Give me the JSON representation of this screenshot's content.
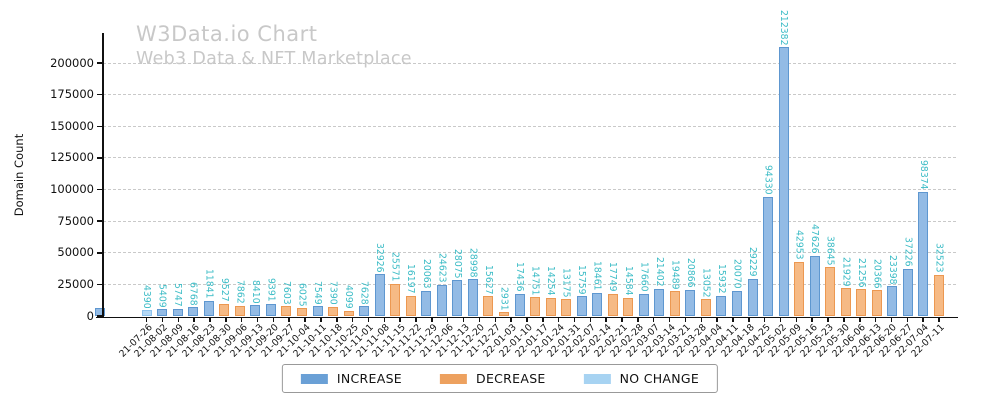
{
  "header": {
    "title": "W3Data.io Chart",
    "subtitle": "Web3 Data & NFT Marketplace"
  },
  "chart_data": {
    "type": "bar",
    "title": "W3Data.io Chart",
    "subtitle": "Web3 Data & NFT Marketplace",
    "xlabel": "",
    "ylabel": "Domain Count",
    "ylim": [
      0,
      223700
    ],
    "yticks": [
      0,
      25000,
      50000,
      75000,
      100000,
      125000,
      150000,
      175000,
      200000
    ],
    "grid": {
      "horizontal": true,
      "style": "dashed",
      "color": "#c9c9c9"
    },
    "legend": {
      "position": "bottom-center",
      "items": [
        {
          "key": "increase",
          "label": "INCREASE",
          "swatch": "#6aa0d6"
        },
        {
          "key": "decrease",
          "label": "DECREASE",
          "swatch": "#eda15f"
        },
        {
          "key": "nochange",
          "label": "NO CHANGE",
          "swatch": "#a7d3f2"
        }
      ]
    },
    "colors": {
      "increase": {
        "fill": "#93bbe5",
        "edge": "#5e97d0"
      },
      "decrease": {
        "fill": "#f6ba85",
        "edge": "#ec9851"
      },
      "nochange": {
        "fill": "#b5d9f6",
        "edge": "#8ec3ee"
      },
      "value_label": "#3cbcc6",
      "title_text": "#c8c8c8",
      "axis_text": "#111111"
    },
    "x_tick_labels": [
      "21-07-26",
      "21-08-02",
      "21-08-09",
      "21-08-16",
      "21-08-23",
      "21-08-30",
      "21-09-06",
      "21-09-13",
      "21-09-20",
      "21-09-27",
      "21-10-04",
      "21-10-11",
      "21-10-18",
      "21-10-25",
      "21-11-01",
      "21-11-08",
      "21-11-15",
      "21-11-22",
      "21-11-29",
      "21-12-06",
      "21-12-13",
      "21-12-20",
      "21-12-27",
      "22-01-03",
      "22-01-10",
      "22-01-17",
      "22-01-24",
      "22-01-31",
      "22-02-07",
      "22-02-14",
      "22-02-21",
      "22-02-28",
      "22-03-07",
      "22-03-14",
      "22-03-21",
      "22-03-28",
      "22-04-04",
      "22-04-11",
      "22-04-18",
      "22-04-25",
      "22-05-02",
      "22-05-09",
      "22-05-16",
      "22-05-23",
      "22-05-30",
      "22-06-06",
      "22-06-13",
      "22-06-20",
      "22-06-27",
      "22-07-04",
      "22-07-11"
    ],
    "bars": [
      {
        "slot": 0,
        "value": 6000,
        "label": "",
        "change": "increase"
      },
      {
        "slot": 3,
        "value": 4390,
        "label": "4390",
        "change": "nochange"
      },
      {
        "slot": 4,
        "value": 5409,
        "label": "5409",
        "change": "increase"
      },
      {
        "slot": 5,
        "value": 5747,
        "label": "5747",
        "change": "increase"
      },
      {
        "slot": 6,
        "value": 6768,
        "label": "6768",
        "change": "increase"
      },
      {
        "slot": 7,
        "value": 11841,
        "label": "11841",
        "change": "increase"
      },
      {
        "slot": 8,
        "value": 9527,
        "label": "9527",
        "change": "decrease"
      },
      {
        "slot": 9,
        "value": 7862,
        "label": "7862",
        "change": "decrease"
      },
      {
        "slot": 10,
        "value": 8410,
        "label": "8410",
        "change": "increase"
      },
      {
        "slot": 11,
        "value": 9391,
        "label": "9391",
        "change": "increase"
      },
      {
        "slot": 12,
        "value": 7603,
        "label": "7603",
        "change": "decrease"
      },
      {
        "slot": 13,
        "value": 6025,
        "label": "6025",
        "change": "decrease"
      },
      {
        "slot": 14,
        "value": 7549,
        "label": "7549",
        "change": "increase"
      },
      {
        "slot": 15,
        "value": 7390,
        "label": "7390",
        "change": "decrease"
      },
      {
        "slot": 16,
        "value": 4099,
        "label": "4099",
        "change": "decrease"
      },
      {
        "slot": 17,
        "value": 7628,
        "label": "7628",
        "change": "increase"
      },
      {
        "slot": 18,
        "value": 32926,
        "label": "32926",
        "change": "increase"
      },
      {
        "slot": 19,
        "value": 25571,
        "label": "25571",
        "change": "decrease"
      },
      {
        "slot": 20,
        "value": 16197,
        "label": "16197",
        "change": "decrease"
      },
      {
        "slot": 21,
        "value": 20063,
        "label": "20063",
        "change": "increase"
      },
      {
        "slot": 22,
        "value": 24623,
        "label": "24623",
        "change": "increase"
      },
      {
        "slot": 23,
        "value": 28075,
        "label": "28075",
        "change": "increase"
      },
      {
        "slot": 24,
        "value": 28998,
        "label": "28998",
        "change": "increase"
      },
      {
        "slot": 25,
        "value": 15627,
        "label": "15627",
        "change": "decrease"
      },
      {
        "slot": 26,
        "value": 2931,
        "label": "2931",
        "change": "decrease"
      },
      {
        "slot": 27,
        "value": 17436,
        "label": "17436",
        "change": "increase"
      },
      {
        "slot": 28,
        "value": 14751,
        "label": "14751",
        "change": "decrease"
      },
      {
        "slot": 29,
        "value": 14254,
        "label": "14254",
        "change": "decrease"
      },
      {
        "slot": 30,
        "value": 13175,
        "label": "13175",
        "change": "decrease"
      },
      {
        "slot": 31,
        "value": 15759,
        "label": "15759",
        "change": "increase"
      },
      {
        "slot": 32,
        "value": 18461,
        "label": "18461",
        "change": "increase"
      },
      {
        "slot": 33,
        "value": 17749,
        "label": "17749",
        "change": "decrease"
      },
      {
        "slot": 34,
        "value": 14584,
        "label": "14584",
        "change": "decrease"
      },
      {
        "slot": 35,
        "value": 17660,
        "label": "17660",
        "change": "increase"
      },
      {
        "slot": 36,
        "value": 21402,
        "label": "21402",
        "change": "increase"
      },
      {
        "slot": 37,
        "value": 19489,
        "label": "19489",
        "change": "decrease"
      },
      {
        "slot": 38,
        "value": 20866,
        "label": "20866",
        "change": "increase"
      },
      {
        "slot": 39,
        "value": 13052,
        "label": "13052",
        "change": "decrease"
      },
      {
        "slot": 40,
        "value": 15932,
        "label": "15932",
        "change": "increase"
      },
      {
        "slot": 41,
        "value": 20070,
        "label": "20070",
        "change": "increase"
      },
      {
        "slot": 42,
        "value": 29229,
        "label": "29229",
        "change": "increase"
      },
      {
        "slot": 43,
        "value": 94330,
        "label": "94330",
        "change": "increase"
      },
      {
        "slot": 44,
        "value": 212382,
        "label": "212382",
        "change": "increase"
      },
      {
        "slot": 45,
        "value": 42953,
        "label": "42953",
        "change": "decrease"
      },
      {
        "slot": 46,
        "value": 47626,
        "label": "47626",
        "change": "increase"
      },
      {
        "slot": 47,
        "value": 38645,
        "label": "38645",
        "change": "decrease"
      },
      {
        "slot": 48,
        "value": 21929,
        "label": "21929",
        "change": "decrease"
      },
      {
        "slot": 49,
        "value": 21256,
        "label": "21256",
        "change": "decrease"
      },
      {
        "slot": 50,
        "value": 20366,
        "label": "20366",
        "change": "decrease"
      },
      {
        "slot": 51,
        "value": 23398,
        "label": "23398",
        "change": "increase"
      },
      {
        "slot": 52,
        "value": 37226,
        "label": "37226",
        "change": "increase"
      },
      {
        "slot": 53,
        "value": 98374,
        "label": "98374",
        "change": "increase"
      },
      {
        "slot": 54,
        "value": 32523,
        "label": "32523",
        "change": "decrease"
      }
    ]
  }
}
